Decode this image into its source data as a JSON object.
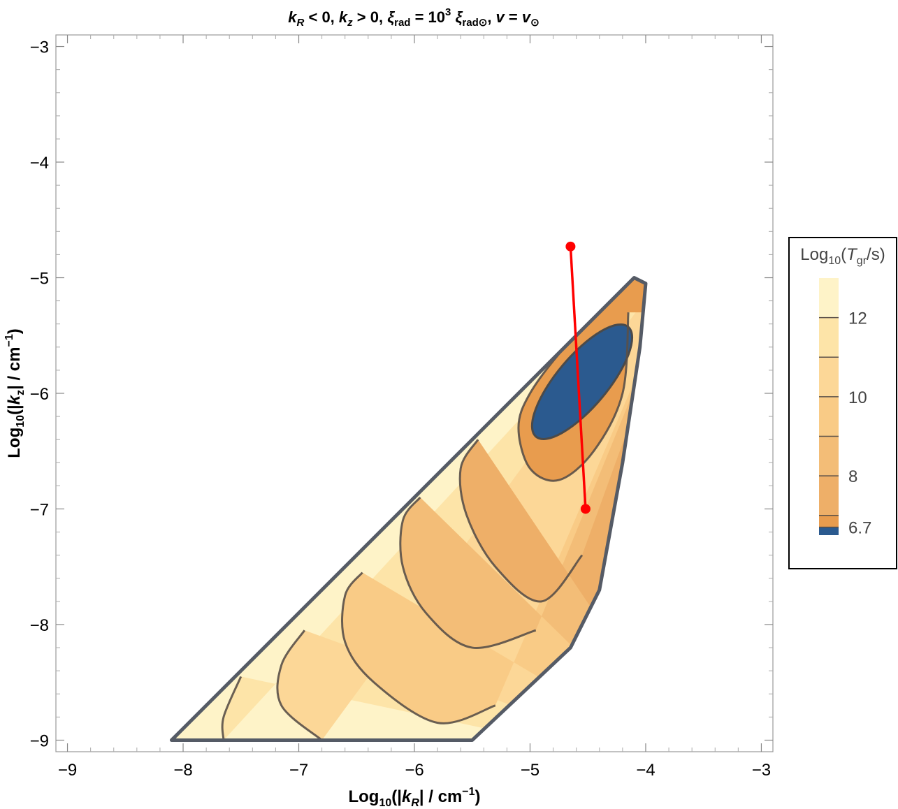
{
  "chart_data": {
    "type": "contour",
    "title": "k_R < 0, k_z > 0, ξ_rad = 10^3 ξ_rad⊙, v = v_⊙",
    "xlabel": "Log10(|k_R| / cm^-1)",
    "ylabel": "Log10(|k_z| / cm^-1)",
    "xlim": [
      -9.1,
      -2.9
    ],
    "ylim": [
      -9.1,
      -2.9
    ],
    "x_ticks": [
      "−9",
      "−8",
      "−7",
      "−6",
      "−5",
      "−4",
      "−3"
    ],
    "y_ticks": [
      "−3",
      "−4",
      "−5",
      "−6",
      "−7",
      "−8",
      "−9"
    ],
    "legend": {
      "title": "Log10(T_gr/s)",
      "position": "right",
      "labels": [
        "12",
        "10",
        "8",
        "6.7"
      ],
      "levels": [
        13,
        12,
        11,
        10,
        9,
        8,
        7,
        6.7,
        6.5
      ],
      "colors": [
        "#fef3c8",
        "#fde4a8",
        "#fcd797",
        "#f9cb86",
        "#f3bd77",
        "#eeaf68",
        "#e89c4e",
        "#2b5a8f"
      ]
    },
    "region": {
      "boundary": [
        [
          -8.1,
          -9.0
        ],
        [
          -4.1,
          -5.0
        ],
        [
          -4.0,
          -5.05
        ],
        [
          -4.05,
          -5.6
        ],
        [
          -4.2,
          -6.6
        ],
        [
          -4.4,
          -7.7
        ],
        [
          -4.65,
          -8.2
        ],
        [
          -5.5,
          -9.0
        ]
      ]
    },
    "contours": [
      {
        "level": 12,
        "points": [
          [
            -7.65,
            -9.0
          ],
          [
            -7.65,
            -8.8
          ],
          [
            -7.5,
            -8.45
          ]
        ]
      },
      {
        "level": 11,
        "points": [
          [
            -6.8,
            -9.0
          ],
          [
            -7.15,
            -8.7
          ],
          [
            -7.15,
            -8.35
          ],
          [
            -6.95,
            -8.05
          ]
        ]
      },
      {
        "level": 10,
        "points": [
          [
            -5.3,
            -8.7
          ],
          [
            -5.8,
            -8.85
          ],
          [
            -6.35,
            -8.5
          ],
          [
            -6.6,
            -8.15
          ],
          [
            -6.6,
            -7.75
          ],
          [
            -6.45,
            -7.55
          ]
        ]
      },
      {
        "level": 9,
        "points": [
          [
            -4.95,
            -8.05
          ],
          [
            -5.5,
            -8.2
          ],
          [
            -5.9,
            -7.9
          ],
          [
            -6.1,
            -7.5
          ],
          [
            -6.1,
            -7.1
          ],
          [
            -5.95,
            -6.9
          ]
        ]
      },
      {
        "level": 8,
        "points": [
          [
            -4.55,
            -7.4
          ],
          [
            -4.9,
            -7.8
          ],
          [
            -5.3,
            -7.5
          ],
          [
            -5.55,
            -7.05
          ],
          [
            -5.6,
            -6.65
          ],
          [
            -5.45,
            -6.4
          ]
        ]
      },
      {
        "level": 7,
        "points": [
          [
            -4.15,
            -5.3
          ],
          [
            -4.2,
            -6.0
          ],
          [
            -4.45,
            -6.5
          ],
          [
            -4.75,
            -6.75
          ],
          [
            -5.0,
            -6.65
          ],
          [
            -5.1,
            -6.3
          ],
          [
            -5.0,
            -6.0
          ],
          [
            -4.7,
            -5.6
          ],
          [
            -4.4,
            -5.3
          ],
          [
            -4.25,
            -5.15
          ]
        ]
      }
    ],
    "blue_region": {
      "level": 6.7,
      "center": [
        -4.55,
        -5.9
      ],
      "rx": 0.62,
      "ry": 0.22,
      "angle_deg": 50
    },
    "red_line": {
      "color": "#ff0000",
      "points": [
        [
          -4.65,
          -4.73
        ],
        [
          -4.52,
          -7.0
        ]
      ]
    }
  }
}
